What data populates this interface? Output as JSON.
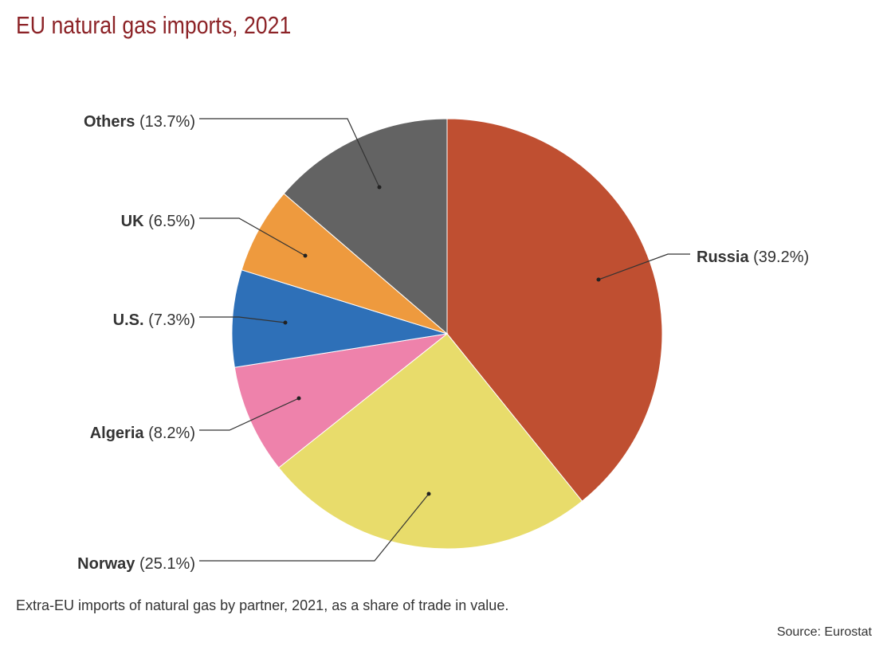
{
  "title": "EU natural gas imports, 2021",
  "caption": "Extra-EU imports of natural gas by partner, 2021, as a share of trade in value.",
  "source": "Source: Eurostat",
  "chart_data": {
    "type": "pie",
    "title": "EU natural gas imports, 2021",
    "slices": [
      {
        "name": "Russia",
        "value": 39.2,
        "label": "(39.2%)",
        "color": "#bf4f31"
      },
      {
        "name": "Norway",
        "value": 25.1,
        "label": "(25.1%)",
        "color": "#e8dc6b"
      },
      {
        "name": "Algeria",
        "value": 8.2,
        "label": "(8.2%)",
        "color": "#ee82ab"
      },
      {
        "name": "U.S.",
        "value": 7.3,
        "label": "(7.3%)",
        "color": "#2e70b8"
      },
      {
        "name": "UK",
        "value": 6.5,
        "label": "(6.5%)",
        "color": "#ee9a3e"
      },
      {
        "name": "Others",
        "value": 13.7,
        "label": "(13.7%)",
        "color": "#636363"
      }
    ],
    "start_angle": "12 o'clock",
    "direction": "clockwise"
  }
}
